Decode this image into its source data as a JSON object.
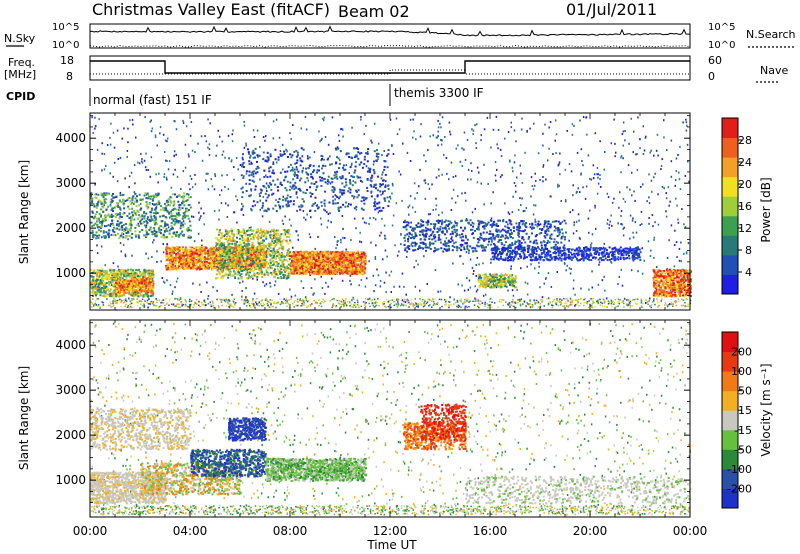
{
  "header": {
    "title": "Christmas Valley East (fitACF)",
    "beam": "Beam 02",
    "date": "01/Jul/2011"
  },
  "panels": {
    "nsky_label": "N.Sky",
    "nsky_ticks": [
      "10^5",
      "10^0"
    ],
    "nsearch_label": "N.Search",
    "nsearch_ticks": [
      "10^5",
      "10^0"
    ],
    "freq_label": "Freq.",
    "freq_unit": "[MHz]",
    "freq_ticks": [
      "18",
      "8"
    ],
    "nave_label": "Nave",
    "nave_ticks": [
      "60",
      "0"
    ],
    "cpid_label": "CPID",
    "cpid_mode_1": "normal (fast) 151 IF",
    "cpid_mode_2": "themis 3300 IF"
  },
  "axes": {
    "ylabel_top": "Slant Range [km]",
    "ylabel_bottom": "Slant Range [km]",
    "xlabel": "Time UT",
    "yticks": [
      "1000",
      "2000",
      "3000",
      "4000"
    ],
    "xticks": [
      "00:00",
      "04:00",
      "08:00",
      "12:00",
      "16:00",
      "20:00",
      "00:00"
    ]
  },
  "colorbars": {
    "power": {
      "label": "Power [dB]",
      "ticks": [
        "4",
        "8",
        "12",
        "16",
        "20",
        "24",
        "28"
      ],
      "colors": [
        "#1e1ee6",
        "#2050b4",
        "#287a78",
        "#3ca050",
        "#9fce3a",
        "#f0e020",
        "#f2a028",
        "#ee6020",
        "#e02018"
      ]
    },
    "velocity": {
      "label": "Velocity [m s⁻¹]",
      "ticks": [
        "200",
        "100",
        "50",
        "15",
        "-15",
        "-50",
        "-100",
        "-200"
      ],
      "colors": [
        "#1e32c8",
        "#2a50a8",
        "#2a8a3a",
        "#66c040",
        "#c8c8c0",
        "#f0b020",
        "#f07a18",
        "#e83a12",
        "#e01010"
      ]
    }
  },
  "chart_data": [
    {
      "type": "line",
      "title": "Christmas Valley East (fitACF)",
      "xlabel": "Time UT",
      "ylabel": "N.Sky",
      "yscale": "log",
      "ylim": [
        "10^0",
        "10^5"
      ],
      "x": [
        "00:00",
        "03:00",
        "06:00",
        "09:00",
        "12:00",
        "15:00",
        "18:00",
        "21:00",
        "24:00"
      ],
      "values": [
        3000,
        2500,
        2500,
        2800,
        3000,
        400,
        500,
        700,
        900
      ]
    },
    {
      "type": "line",
      "ylabel": "Freq. [MHz]",
      "ylim": [
        8,
        18
      ],
      "x": [
        "00:00",
        "03:00",
        "03:00",
        "15:00",
        "15:00",
        "24:00"
      ],
      "values": [
        16.5,
        16.5,
        10.5,
        10.5,
        16.5,
        16.5
      ]
    },
    {
      "type": "heatmap",
      "quantity": "Power [dB]",
      "xlabel": "Time UT",
      "ylabel": "Slant Range [km]",
      "xlim": [
        "00:00",
        "24:00"
      ],
      "ylim": [
        180,
        4560
      ],
      "clim": [
        0,
        32
      ]
    },
    {
      "type": "heatmap",
      "quantity": "Velocity [m s-1]",
      "xlabel": "Time UT",
      "ylabel": "Slant Range [km]",
      "xlim": [
        "00:00",
        "24:00"
      ],
      "ylim": [
        180,
        4560
      ],
      "clim": [
        -250,
        250
      ]
    }
  ]
}
